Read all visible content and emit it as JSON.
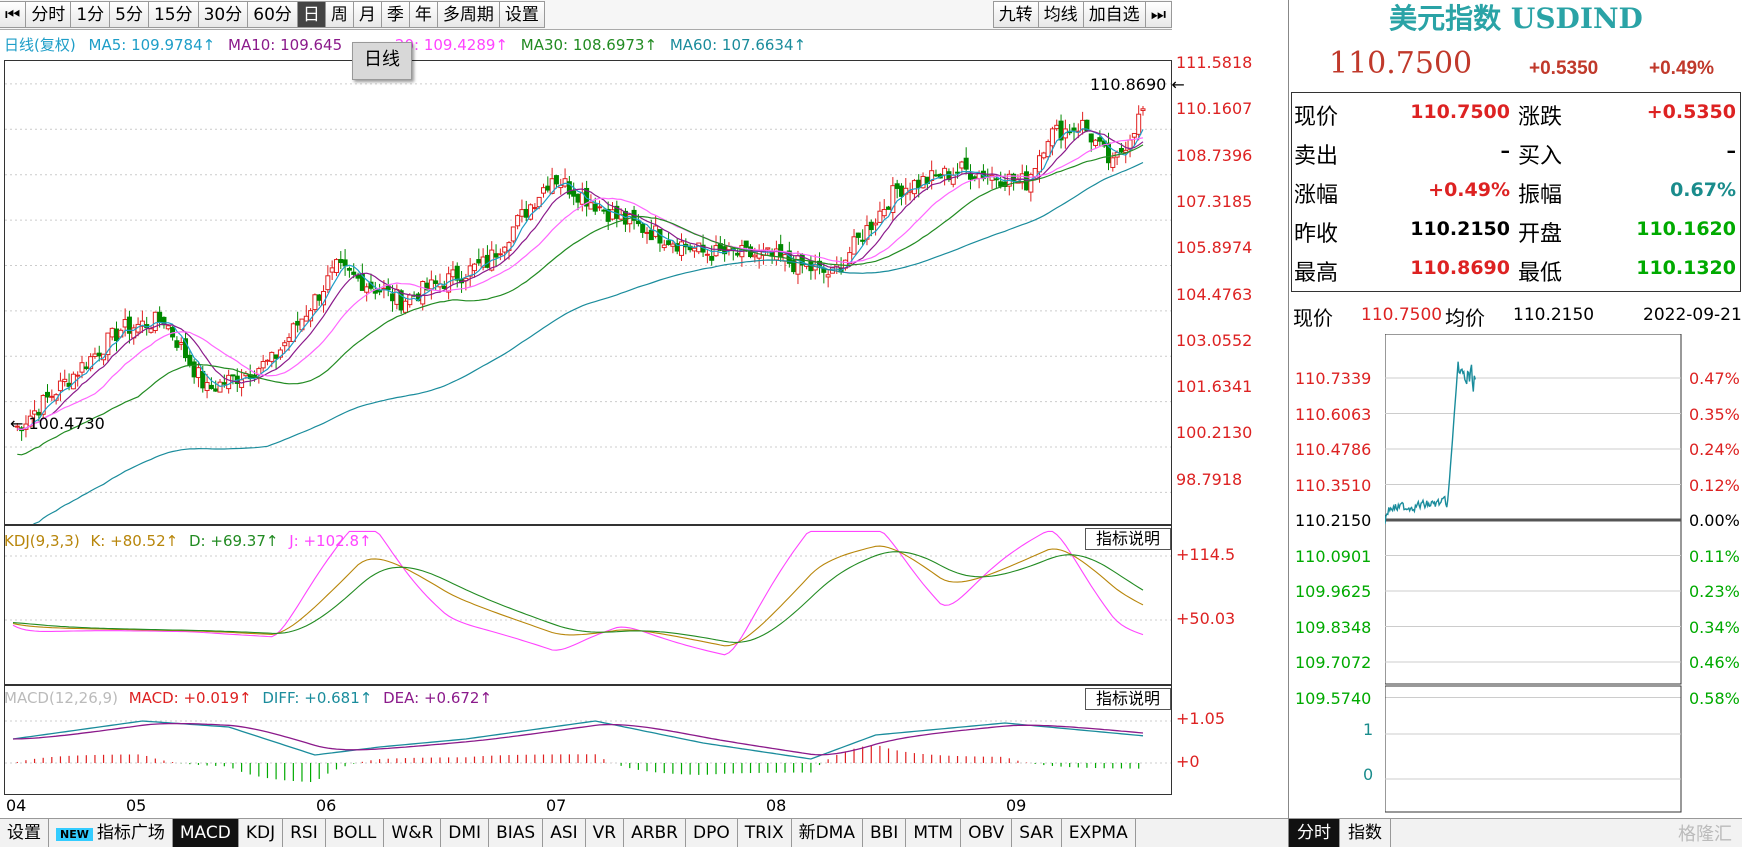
{
  "toolbar": {
    "buttons": [
      "分时",
      "1分",
      "5分",
      "15分",
      "30分",
      "60分",
      "日",
      "周",
      "月",
      "季",
      "年",
      "多周期",
      "设置"
    ],
    "active": "日",
    "right_buttons": [
      "九转",
      "均线",
      "加自选"
    ]
  },
  "ma_legend": {
    "period": "日线(复权)",
    "ma5": "MA5: 109.9784↑",
    "ma10": "MA10: 109.645",
    "ma20": "20: 109.4289↑",
    "ma30": "MA30: 108.6973↑",
    "ma60": "MA60: 107.6634↑"
  },
  "tooltip": "日线",
  "price_axis": [
    "111.5818",
    "110.1607",
    "108.7396",
    "107.3185",
    "105.8974",
    "104.4763",
    "103.0552",
    "101.6341",
    "100.2130",
    "98.7918"
  ],
  "high_marker": "110.8690",
  "low_marker": "100.4730",
  "kdj": {
    "legend": "KDJ(9,3,3)",
    "k": "K: +80.52↑",
    "d": "D: +69.37↑",
    "j": "J: +102.8↑",
    "axis": [
      "+114.5",
      "+50.03"
    ],
    "explain": "指标说明"
  },
  "macd": {
    "legend": "MACD(12,26,9)",
    "macd": "MACD: +0.019↑",
    "diff": "DIFF: +0.681↑",
    "dea": "DEA: +0.672↑",
    "axis": [
      "+1.05",
      "+0"
    ],
    "explain": "指标说明"
  },
  "x_axis": [
    "04",
    "05",
    "06",
    "07",
    "08",
    "09"
  ],
  "bottom_tabs": [
    "设置",
    "指标广场",
    "MACD",
    "KDJ",
    "RSI",
    "BOLL",
    "W&R",
    "DMI",
    "BIAS",
    "ASI",
    "VR",
    "ARBR",
    "DPO",
    "TRIX",
    "新DMA",
    "BBI",
    "MTM",
    "OBV",
    "SAR",
    "EXPMA"
  ],
  "bottom_new_badge": "NEW",
  "bottom_active": "MACD",
  "colors": {
    "red": "#dd2222",
    "green": "#009900",
    "teal": "#2aa3a6",
    "ma5": "#1e9ec8",
    "ma10": "#8b1a8b",
    "ma20": "#ff66ff",
    "ma30": "#228b22",
    "ma60": "#1a8c9c"
  },
  "right": {
    "title": "美元指数 USDIND",
    "price": "110.7500",
    "change": "+0.5350",
    "change_pct": "+0.49%",
    "rows": [
      {
        "l1": "现价",
        "v1": "110.7500",
        "l2": "涨跌",
        "v2": "+0.5350"
      },
      {
        "l1": "卖出",
        "v1": "–",
        "l2": "买入",
        "v2": "–"
      },
      {
        "l1": "涨幅",
        "v1": "+0.49%",
        "l2": "振幅",
        "v2": "0.67%"
      },
      {
        "l1": "昨收",
        "v1": "110.2150",
        "l2": "开盘",
        "v2": "110.1620"
      },
      {
        "l1": "最高",
        "v1": "110.8690",
        "l2": "最低",
        "v2": "110.1320"
      }
    ],
    "mini_head": {
      "label_now": "现价",
      "now": "110.7500",
      "label_avg": "均价",
      "avg": "110.2150",
      "date": "2022-09-21"
    },
    "mini_left_axis": [
      "110.7339",
      "110.6063",
      "110.4786",
      "110.3510",
      "110.2150",
      "110.0901",
      "109.9625",
      "109.8348",
      "109.7072",
      "109.5740"
    ],
    "mini_right_axis": [
      "0.47%",
      "0.35%",
      "0.24%",
      "0.12%",
      "0.00%",
      "0.11%",
      "0.23%",
      "0.34%",
      "0.46%",
      "0.58%"
    ],
    "mini_vol_axis": [
      "1",
      "0"
    ],
    "tabs": [
      "分时",
      "指数"
    ],
    "watermark": "格隆汇"
  }
}
